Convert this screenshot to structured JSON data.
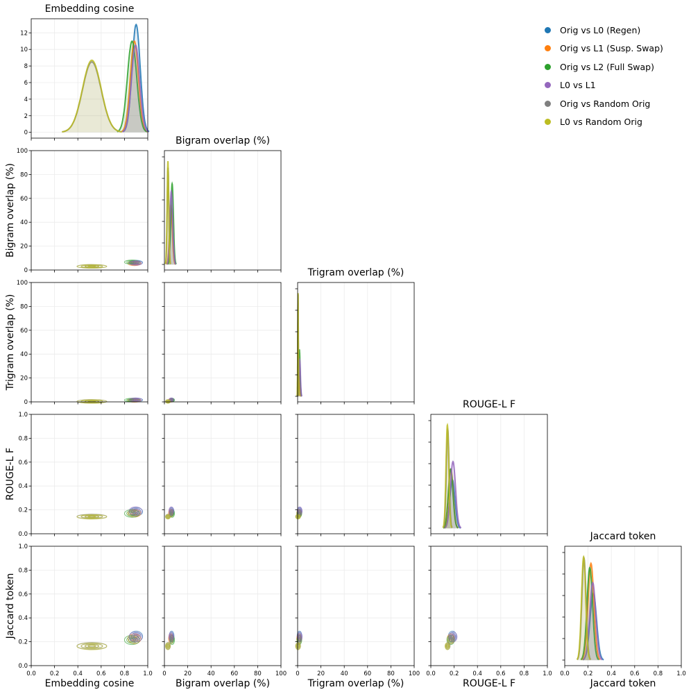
{
  "chart_data": {
    "type": "pairplot",
    "variables": [
      {
        "name": "Embedding cosine",
        "range": [
          0.0,
          1.0
        ],
        "ticks": [
          0.0,
          0.2,
          0.4,
          0.6,
          0.8,
          1.0
        ],
        "tick_labels": [
          "0.0",
          "0.2",
          "0.4",
          "0.6",
          "0.8",
          "1.0"
        ]
      },
      {
        "name": "Bigram overlap (%)",
        "range": [
          0,
          100
        ],
        "ticks": [
          0,
          20,
          40,
          60,
          80,
          100
        ],
        "tick_labels": [
          "0",
          "20",
          "40",
          "60",
          "80",
          "100"
        ]
      },
      {
        "name": "Trigram overlap (%)",
        "range": [
          0,
          100
        ],
        "ticks": [
          0,
          20,
          40,
          60,
          80,
          100
        ],
        "tick_labels": [
          "0",
          "20",
          "40",
          "60",
          "80",
          "100"
        ]
      },
      {
        "name": "ROUGE-L F",
        "range": [
          0.0,
          1.0
        ],
        "ticks": [
          0.0,
          0.2,
          0.4,
          0.6,
          0.8,
          1.0
        ],
        "tick_labels": [
          "0.0",
          "0.2",
          "0.4",
          "0.6",
          "0.8",
          "1.0"
        ]
      },
      {
        "name": "Jaccard token",
        "range": [
          0.0,
          1.0
        ],
        "ticks": [
          0.0,
          0.2,
          0.4,
          0.6,
          0.8,
          1.0
        ],
        "tick_labels": [
          "0.0",
          "0.2",
          "0.4",
          "0.6",
          "0.8",
          "1.0"
        ]
      }
    ],
    "diag_density_axis": {
      "variable": "Embedding cosine",
      "range": [
        -0.7,
        13.7
      ],
      "ticks": [
        0,
        2,
        4,
        6,
        8,
        10,
        12
      ],
      "tick_labels": [
        "0",
        "2",
        "4",
        "6",
        "8",
        "10",
        "12"
      ]
    },
    "series": [
      {
        "name": "Orig vs L0 (Regen)",
        "color": "#1f77b4",
        "center": [
          0.9,
          6.2,
          1.6,
          0.185,
          0.245
        ],
        "spread": [
          0.035,
          1.2,
          0.6,
          0.022,
          0.028
        ],
        "diag_peaks": [
          13.0,
          52,
          30,
          0.45,
          0.62
        ]
      },
      {
        "name": "Orig vs L1 (Susp. Swap)",
        "color": "#ff7f0e",
        "center": [
          0.885,
          5.6,
          1.3,
          0.172,
          0.225
        ],
        "spread": [
          0.035,
          1.2,
          0.5,
          0.02,
          0.025
        ],
        "diag_peaks": [
          11.0,
          55,
          28,
          0.55,
          0.9
        ]
      },
      {
        "name": "Orig vs L2 (Full Swap)",
        "color": "#2ca02c",
        "center": [
          0.865,
          6.6,
          1.5,
          0.17,
          0.215
        ],
        "spread": [
          0.04,
          1.1,
          0.6,
          0.02,
          0.024
        ],
        "diag_peaks": [
          11.0,
          75,
          45,
          0.55,
          0.86
        ]
      },
      {
        "name": "L0 vs L1",
        "color": "#9467bd",
        "center": [
          0.895,
          5.9,
          1.8,
          0.19,
          0.24
        ],
        "spread": [
          0.035,
          1.2,
          0.6,
          0.022,
          0.026
        ],
        "diag_peaks": [
          10.5,
          68,
          35,
          0.62,
          0.72
        ]
      },
      {
        "name": "Orig vs Random Orig",
        "color": "#7f7f7f",
        "center": [
          0.52,
          3.1,
          0.4,
          0.145,
          0.165
        ],
        "spread": [
          0.08,
          0.7,
          0.25,
          0.012,
          0.018
        ],
        "diag_peaks": [
          8.5,
          90,
          98,
          0.92,
          0.95
        ]
      },
      {
        "name": "L0 vs Random Orig",
        "color": "#bcbd22",
        "center": [
          0.52,
          3.0,
          0.35,
          0.142,
          0.162
        ],
        "spread": [
          0.08,
          0.7,
          0.25,
          0.012,
          0.018
        ],
        "diag_peaks": [
          8.7,
          96,
          99,
          0.96,
          0.96
        ]
      }
    ]
  }
}
